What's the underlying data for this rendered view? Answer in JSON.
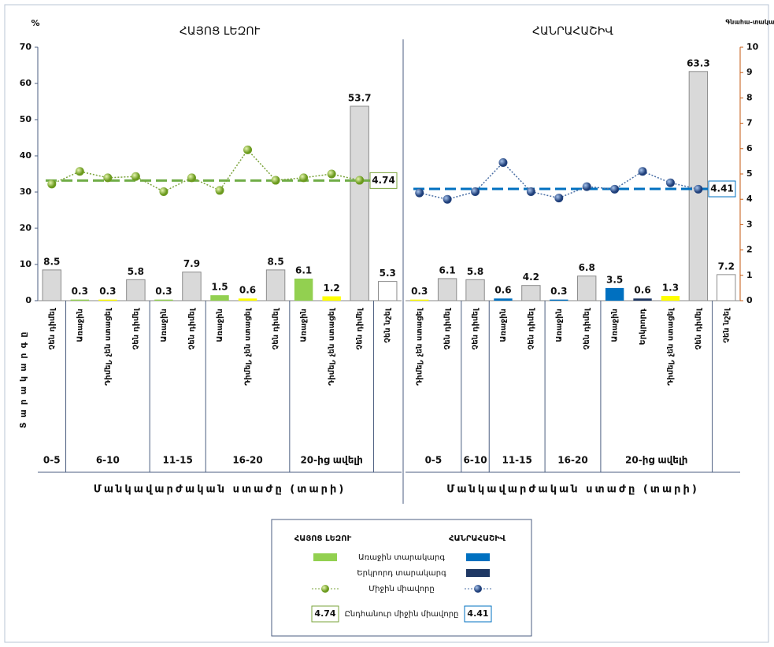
{
  "chart_data": [
    {
      "type": "bar",
      "title": "ՀԱՅՈՑ ԼԵԶՈՒ",
      "y_unit": "%",
      "y_label": "Տարակարգը",
      "x_label": "Մանկավարժական ստաժը (տարի)",
      "ylim": [
        0,
        70
      ],
      "yticks": [
        0,
        10,
        20,
        30,
        40,
        50,
        60,
        70
      ],
      "average": 4.74,
      "line_color": "#7aa33a",
      "groups": [
        {
          "label": "0-5",
          "categories": [
            "Չեն դիմել"
          ],
          "values": [
            8.5
          ],
          "colors": [
            "#d9d9d9"
          ],
          "line_values": [
            4.6
          ]
        },
        {
          "label": "6-10",
          "categories": [
            "Առաջին",
            "Դիմել, չեն ստացել",
            "Չեն դիմել"
          ],
          "values": [
            0.3,
            0.3,
            5.8
          ],
          "colors": [
            "#92d050",
            "#ffff00",
            "#d9d9d9"
          ],
          "line_values": [
            5.1,
            4.85,
            4.9
          ]
        },
        {
          "label": "11-15",
          "categories": [
            "Առաջին",
            "Չեն դիմել"
          ],
          "values": [
            0.3,
            7.9
          ],
          "colors": [
            "#92d050",
            "#d9d9d9"
          ],
          "line_values": [
            4.3,
            4.85
          ]
        },
        {
          "label": "16-20",
          "categories": [
            "Առաջին",
            "Դիմել, չեն ստացել",
            "Չեն դիմել"
          ],
          "values": [
            1.5,
            0.6,
            8.5
          ],
          "colors": [
            "#92d050",
            "#ffff00",
            "#d9d9d9"
          ],
          "line_values": [
            4.35,
            5.95,
            4.75
          ]
        },
        {
          "label": "20-ից ավելի",
          "categories": [
            "Առաջին",
            "Դիմել, չեն ստացել",
            "Չեն դիմել"
          ],
          "values": [
            6.1,
            1.2,
            53.7
          ],
          "colors": [
            "#92d050",
            "#ffff00",
            "#d9d9d9"
          ],
          "line_values": [
            4.85,
            5.0,
            4.75
          ]
        },
        {
          "label": null,
          "categories": [
            "Չեն նշել"
          ],
          "values": [
            5.3
          ],
          "colors": [
            "#ffffff"
          ],
          "line_values": [
            null
          ]
        }
      ]
    },
    {
      "type": "bar",
      "title": "ՀԱՆՐԱՀԱՇԻՎ",
      "y2_unit": "Գնահա-տական",
      "x_label": "Մանկավարժական ստաժը (տարի)",
      "y2lim": [
        0,
        10
      ],
      "y2ticks": [
        0,
        1,
        2,
        3,
        4,
        5,
        6,
        7,
        8,
        9,
        10
      ],
      "average": 4.41,
      "line_color": "#4a6fa5",
      "groups": [
        {
          "label": "0-5",
          "categories": [
            "Դիմել, չեն ստացել",
            "Չեն դիմել"
          ],
          "values": [
            0.3,
            6.1
          ],
          "colors": [
            "#ffff00",
            "#d9d9d9"
          ],
          "line_values": [
            4.25,
            4.0
          ]
        },
        {
          "label": "6-10",
          "categories": [
            "Չեն դիմել"
          ],
          "values": [
            5.8
          ],
          "colors": [
            "#d9d9d9"
          ],
          "line_values": [
            4.3
          ]
        },
        {
          "label": "11-15",
          "categories": [
            "Առաջին",
            "Չեն դիմել"
          ],
          "values": [
            0.6,
            4.2
          ],
          "colors": [
            "#0070c0",
            "#d9d9d9"
          ],
          "line_values": [
            5.45,
            4.3
          ]
        },
        {
          "label": "16-20",
          "categories": [
            "Առաջին",
            "Չեն դիմել"
          ],
          "values": [
            0.3,
            6.8
          ],
          "colors": [
            "#0070c0",
            "#d9d9d9"
          ],
          "line_values": [
            4.05,
            4.5
          ]
        },
        {
          "label": "20-ից ավելի",
          "categories": [
            "Առաջին",
            "Երկրորդ",
            "Դիմել, չեն ստացել",
            "Չեն դիմել"
          ],
          "values": [
            3.5,
            0.6,
            1.3,
            63.3
          ],
          "colors": [
            "#0070c0",
            "#1f3864",
            "#ffff00",
            "#d9d9d9"
          ],
          "line_values": [
            4.4,
            5.1,
            4.65,
            4.4
          ]
        },
        {
          "label": null,
          "categories": [
            "Չեն նշել"
          ],
          "values": [
            7.2
          ],
          "colors": [
            "#ffffff"
          ],
          "line_values": [
            null
          ]
        }
      ]
    }
  ],
  "legend": {
    "headers": [
      "ՀԱՅՈՑ ԼԵԶՈՒ",
      "ՀԱՆՐԱՀԱՇԻՎ"
    ],
    "items": [
      "Առաջին տարակարգ",
      "Երկրորդ տարակարգ",
      "Միջին միավորը",
      "Ընդհանուր միջին միավորը"
    ]
  }
}
